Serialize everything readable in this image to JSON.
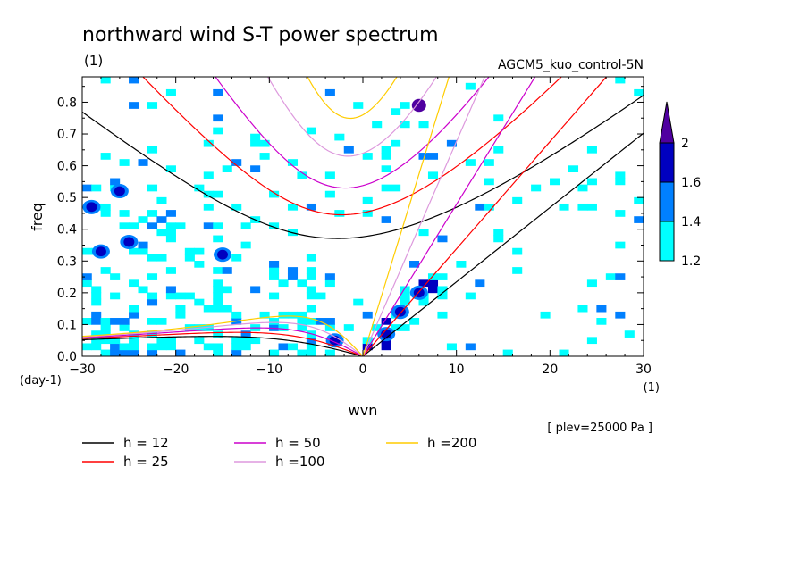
{
  "chart_data": {
    "type": "heatmap",
    "title": "northward wind S-T power spectrum",
    "subtitle_left": "(1)",
    "subtitle_right": "AGCM5_kuo_control-5N",
    "xlabel": "wvn",
    "ylabel": "freq",
    "x_unit": "(1)",
    "y_unit": "(day-1)",
    "note": "[ plev=25000 Pa ]",
    "xlim": [
      -30,
      30
    ],
    "ylim": [
      0,
      0.88
    ],
    "x_ticks": [
      -30,
      -20,
      -10,
      0,
      10,
      20,
      30
    ],
    "x_tick_labels": [
      "−30",
      "−20",
      "−10",
      "0",
      "10",
      "20",
      "30"
    ],
    "y_ticks": [
      0,
      0.1,
      0.2,
      0.3,
      0.4,
      0.5,
      0.6,
      0.7,
      0.8
    ],
    "y_tick_labels": [
      "0.0",
      "0.1",
      "0.2",
      "0.3",
      "0.4",
      "0.5",
      "0.6",
      "0.7",
      "0.8"
    ],
    "colorbar": {
      "levels": [
        1.2,
        1.4,
        1.6,
        2
      ],
      "level_labels": [
        "1.2",
        "1.4",
        "1.6",
        "2"
      ],
      "colors": [
        "#00ffff",
        "#0080ff",
        "#0000c0",
        "#5000a0"
      ]
    },
    "dispersion_curves": [
      {
        "label": "h = 12",
        "h": 12,
        "color": "#000000"
      },
      {
        "label": "h = 25",
        "h": 25,
        "color": "#ff0000"
      },
      {
        "label": "h = 50",
        "h": 50,
        "color": "#cc00cc"
      },
      {
        "label": "h =100",
        "h": 100,
        "color": "#dd99dd"
      },
      {
        "label": "h =200",
        "h": 200,
        "color": "#ffcc00"
      }
    ],
    "high_power_regions": [
      {
        "x": 6,
        "y": 0.79,
        "level": 2
      },
      {
        "x": 2.5,
        "y": 0.07,
        "level": 1.6
      },
      {
        "x": 4,
        "y": 0.14,
        "level": 1.6
      },
      {
        "x": 6,
        "y": 0.2,
        "level": 1.6
      },
      {
        "x": -3,
        "y": 0.05,
        "level": 1.6
      },
      {
        "x": -28,
        "y": 0.33,
        "level": 1.6
      },
      {
        "x": -26,
        "y": 0.52,
        "level": 1.6
      },
      {
        "x": -25,
        "y": 0.36,
        "level": 1.6
      },
      {
        "x": -29,
        "y": 0.47,
        "level": 1.6
      },
      {
        "x": -15,
        "y": 0.32,
        "level": 1.6
      }
    ]
  }
}
